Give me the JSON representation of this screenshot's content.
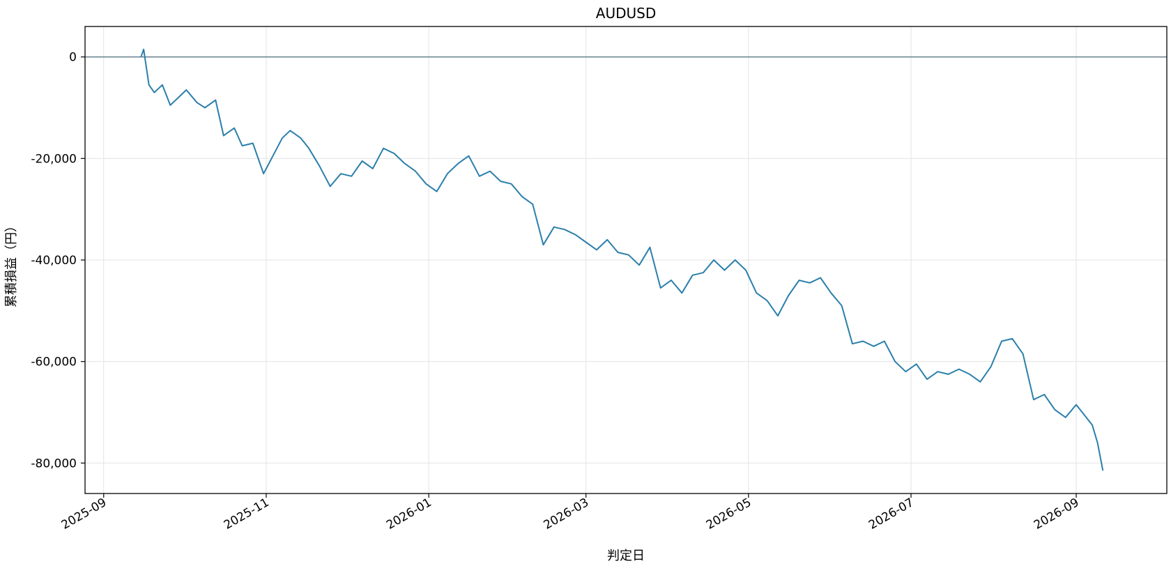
{
  "chart_data": {
    "type": "line",
    "title": "AUDUSD",
    "xlabel": "判定日",
    "ylabel": "累積損益（円）",
    "x_ticks": [
      "2025-09",
      "2025-11",
      "2026-01",
      "2026-03",
      "2026-05",
      "2026-07",
      "2026-09"
    ],
    "y_ticks": [
      0,
      -20000,
      -40000,
      -60000,
      -80000
    ],
    "y_tick_labels": [
      "0",
      "-20,000",
      "-40,000",
      "-60,000",
      "-80,000"
    ],
    "xlim": [
      "2025-08-25",
      "2026-10-05"
    ],
    "ylim": [
      -86000,
      6000
    ],
    "grid": true,
    "zero_line": true,
    "line_color": "#2a7fab",
    "zero_line_color": "#5d7787",
    "series": [
      {
        "x": [
          "2025-09-15",
          "2025-09-16",
          "2025-09-17",
          "2025-09-18",
          "2025-09-20",
          "2025-09-23",
          "2025-09-26",
          "2025-09-29",
          "2025-10-02",
          "2025-10-06",
          "2025-10-09",
          "2025-10-13",
          "2025-10-16",
          "2025-10-20",
          "2025-10-23",
          "2025-10-27",
          "2025-10-31",
          "2025-11-03",
          "2025-11-07",
          "2025-11-10",
          "2025-11-14",
          "2025-11-17",
          "2025-11-21",
          "2025-11-25",
          "2025-11-29",
          "2025-12-03",
          "2025-12-07",
          "2025-12-11",
          "2025-12-15",
          "2025-12-19",
          "2025-12-23",
          "2025-12-27",
          "2025-12-31",
          "2026-01-04",
          "2026-01-08",
          "2026-01-12",
          "2026-01-16",
          "2026-01-20",
          "2026-01-24",
          "2026-01-28",
          "2026-02-01",
          "2026-02-05",
          "2026-02-09",
          "2026-02-13",
          "2026-02-17",
          "2026-02-21",
          "2026-02-25",
          "2026-03-01",
          "2026-03-05",
          "2026-03-09",
          "2026-03-13",
          "2026-03-17",
          "2026-03-21",
          "2026-03-25",
          "2026-03-29",
          "2026-04-02",
          "2026-04-06",
          "2026-04-10",
          "2026-04-14",
          "2026-04-18",
          "2026-04-22",
          "2026-04-26",
          "2026-04-30",
          "2026-05-04",
          "2026-05-08",
          "2026-05-12",
          "2026-05-16",
          "2026-05-20",
          "2026-05-24",
          "2026-05-28",
          "2026-06-01",
          "2026-06-05",
          "2026-06-09",
          "2026-06-13",
          "2026-06-17",
          "2026-06-21",
          "2026-06-25",
          "2026-06-29",
          "2026-07-03",
          "2026-07-07",
          "2026-07-11",
          "2026-07-15",
          "2026-07-19",
          "2026-07-23",
          "2026-07-27",
          "2026-07-31",
          "2026-08-04",
          "2026-08-08",
          "2026-08-12",
          "2026-08-16",
          "2026-08-20",
          "2026-08-24",
          "2026-08-28",
          "2026-09-01",
          "2026-09-04",
          "2026-09-07",
          "2026-09-09",
          "2026-09-11"
        ],
        "y": [
          0,
          1500,
          -2000,
          -5500,
          -7000,
          -5500,
          -9500,
          -8000,
          -6500,
          -9000,
          -10000,
          -8500,
          -15500,
          -14000,
          -17500,
          -17000,
          -23000,
          -20000,
          -16000,
          -14500,
          -16000,
          -18000,
          -21500,
          -25500,
          -23000,
          -23500,
          -20500,
          -22000,
          -18000,
          -19000,
          -21000,
          -22500,
          -25000,
          -26500,
          -23000,
          -21000,
          -19500,
          -23500,
          -22500,
          -24500,
          -25000,
          -27500,
          -29000,
          -37000,
          -33500,
          -34000,
          -35000,
          -36500,
          -38000,
          -36000,
          -38500,
          -39000,
          -41000,
          -37500,
          -45500,
          -44000,
          -46500,
          -43000,
          -42500,
          -40000,
          -42000,
          -40000,
          -42000,
          -46500,
          -48000,
          -51000,
          -47000,
          -44000,
          -44500,
          -43500,
          -46500,
          -49000,
          -56500,
          -56000,
          -57000,
          -56000,
          -60000,
          -62000,
          -60500,
          -63500,
          -62000,
          -62500,
          -61500,
          -62500,
          -64000,
          -61000,
          -56000,
          -55500,
          -58500,
          -67500,
          -66500,
          -69500,
          -71000,
          -68500,
          -70500,
          -72500,
          -76000,
          -81500
        ]
      }
    ]
  }
}
